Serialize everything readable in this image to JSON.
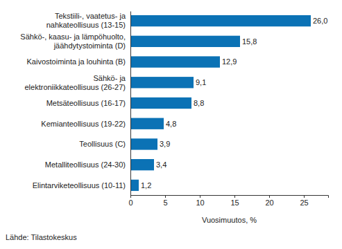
{
  "chart_data": {
    "type": "bar",
    "orientation": "horizontal",
    "categories": [
      "Tekstiili-, vaatetus- ja\nnahkateollisuus (13-15)",
      "Sähkö-, kaasu- ja lämpöhuolto,\njäähdytystoiminta (D)",
      "Kaivostoiminta ja louhinta (B)",
      "Sähkö- ja\nelektroniikkateollisuus (26-27)",
      "Metsäteollisuus (16-17)",
      "Kemianteollisuus (19-22)",
      "Teollisuus (C)",
      "Metalliteollisuus (24-30)",
      "Elintarviketeollisuus (10-11)"
    ],
    "values": [
      26.0,
      15.8,
      12.9,
      9.1,
      8.8,
      4.8,
      3.9,
      3.4,
      1.2
    ],
    "value_labels": [
      "26,0",
      "15,8",
      "12,9",
      "9,1",
      "8,8",
      "4,8",
      "3,9",
      "3,4",
      "1,2"
    ],
    "data_labels": true,
    "color": "#0b72b5",
    "xlabel": "Vuosimuutos, %",
    "xlim": [
      0,
      28.5
    ],
    "xticks": [
      0,
      5,
      10,
      15,
      20,
      25
    ],
    "grid": false,
    "source": "Lähde: Tilastokeskus"
  }
}
